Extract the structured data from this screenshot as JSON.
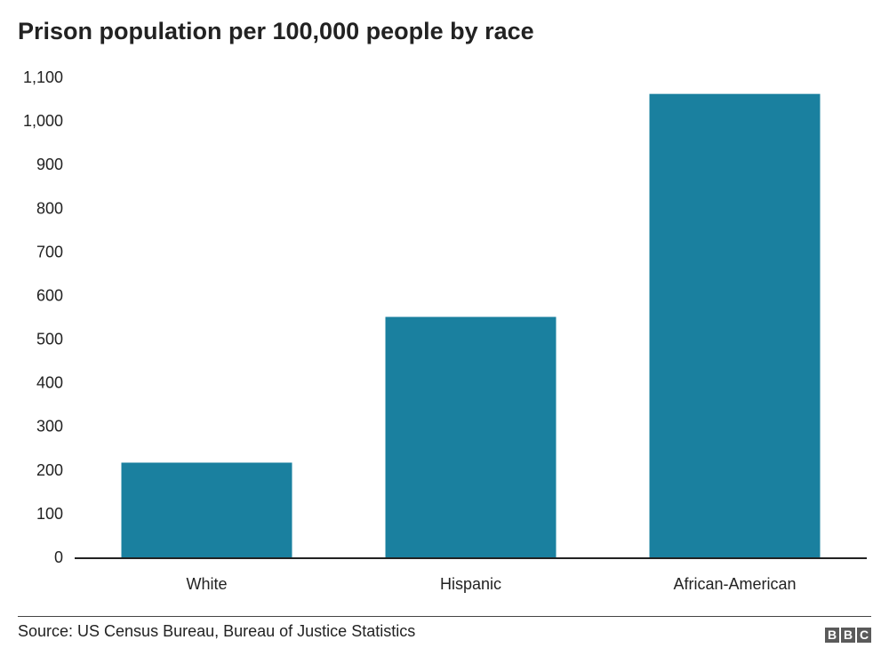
{
  "chart_data": {
    "type": "bar",
    "title": "Prison population per 100,000 people by race",
    "categories": [
      "White",
      "Hispanic",
      "African-American"
    ],
    "values": [
      217,
      551,
      1062
    ],
    "ylim": [
      0,
      1100
    ],
    "yticks": [
      0,
      100,
      200,
      300,
      400,
      500,
      600,
      700,
      800,
      900,
      1000,
      1100
    ],
    "ytick_labels": [
      "0",
      "100",
      "200",
      "300",
      "400",
      "500",
      "600",
      "700",
      "800",
      "900",
      "1,000",
      "1,100"
    ],
    "xlabel": "",
    "ylabel": "",
    "grid": false,
    "bar_color": "#1a809f",
    "source": "Source: US Census Bureau, Bureau of Justice Statistics"
  },
  "branding": {
    "logo_letters": [
      "B",
      "B",
      "C"
    ],
    "logo_color": "#5a5a5a"
  }
}
